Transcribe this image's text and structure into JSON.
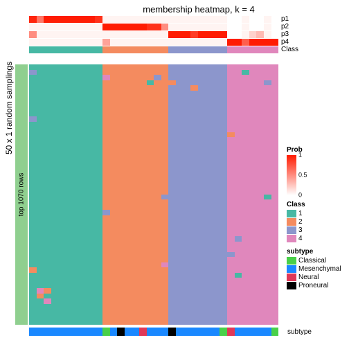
{
  "title": "membership heatmap, k = 4",
  "ylabel_outer": "50 x 1 random samplings",
  "ylabel_inner": "top 1070 rows",
  "ylabel_inner_bg": "#8fcf8f",
  "track_labels": [
    "p1",
    "p2",
    "p3",
    "p4",
    "Class"
  ],
  "bottom_label": "subtype",
  "prob_gradient": {
    "low": "#ffffff",
    "high": "#ff1a00"
  },
  "cluster_widths": [
    10,
    9,
    8,
    7
  ],
  "p_tracks": {
    "p1": [
      [
        0.95,
        0.6,
        0.99,
        0.99,
        0.99,
        0.99,
        0.99,
        0.99,
        0.99,
        0.9,
        0.05,
        0.05,
        0.05,
        0.05,
        0.05,
        0.05,
        0.05,
        0.05,
        0.05,
        0.05,
        0.05,
        0.05,
        0.05,
        0.05,
        0.05,
        0.05,
        0.05,
        0.0,
        0.0,
        0.05,
        0.0,
        0.0,
        0.05,
        0.0
      ],
      null,
      null,
      null,
      null
    ],
    "p2": [
      null,
      [
        0.05,
        0.05,
        0.05,
        0.05,
        0.05,
        0.05,
        0.05,
        0.05,
        0.05,
        0.05,
        0.99,
        0.99,
        0.99,
        0.99,
        0.99,
        0.99,
        0.9,
        0.9,
        0.5,
        0.05,
        0.05,
        0.05,
        0.05,
        0.05,
        0.05,
        0.05,
        0.05,
        0.0,
        0.0,
        0.05,
        0.0,
        0.0,
        0.05,
        0.0
      ],
      null,
      null,
      null
    ],
    "p3": [
      null,
      null,
      [
        0.5,
        0.05,
        0.05,
        0.05,
        0.05,
        0.05,
        0.05,
        0.05,
        0.05,
        0.05,
        0.05,
        0.05,
        0.05,
        0.05,
        0.05,
        0.05,
        0.05,
        0.05,
        0.05,
        0.99,
        0.99,
        0.99,
        0.85,
        0.99,
        0.99,
        0.99,
        0.99,
        0.0,
        0.0,
        0.05,
        0.2,
        0.3,
        0.05,
        0.0
      ],
      null,
      null
    ],
    "p4": [
      null,
      null,
      null,
      [
        0.05,
        0.05,
        0.05,
        0.05,
        0.05,
        0.05,
        0.05,
        0.05,
        0.05,
        0.05,
        0.4,
        0.05,
        0.05,
        0.05,
        0.05,
        0.05,
        0.05,
        0.05,
        0.05,
        0.05,
        0.05,
        0.05,
        0.05,
        0.05,
        0.05,
        0.05,
        0.05,
        0.99,
        0.99,
        0.7,
        0.99,
        0.99,
        0.99,
        0.99
      ],
      null
    ]
  },
  "class_track": [
    1,
    1,
    1,
    1,
    1,
    1,
    1,
    1,
    1,
    1,
    2,
    2,
    2,
    2,
    2,
    2,
    2,
    2,
    2,
    3,
    3,
    3,
    3,
    3,
    3,
    3,
    3,
    4,
    4,
    4,
    4,
    4,
    4,
    4
  ],
  "body_columns": [
    {
      "base": 1,
      "stripes": [
        [
          0.02,
          3
        ],
        [
          0.2,
          3
        ],
        [
          0.78,
          2
        ]
      ]
    },
    {
      "base": 1,
      "stripes": [
        [
          0.85,
          4
        ],
        [
          0.88,
          2
        ]
      ]
    },
    {
      "base": 1,
      "stripes": [
        [
          0.85,
          2
        ],
        [
          0.9,
          4
        ]
      ]
    },
    {
      "base": 1,
      "stripes": []
    },
    {
      "base": 1,
      "stripes": []
    },
    {
      "base": 1,
      "stripes": []
    },
    {
      "base": 1,
      "stripes": []
    },
    {
      "base": 1,
      "stripes": []
    },
    {
      "base": 1,
      "stripes": []
    },
    {
      "base": 1,
      "stripes": []
    },
    {
      "base": 2,
      "stripes": [
        [
          0.03,
          4
        ],
        [
          0.55,
          3
        ]
      ]
    },
    {
      "base": 2,
      "stripes": []
    },
    {
      "base": 2,
      "stripes": []
    },
    {
      "base": 2,
      "stripes": []
    },
    {
      "base": 2,
      "stripes": []
    },
    {
      "base": 2,
      "stripes": []
    },
    {
      "base": 2,
      "stripes": [
        [
          0.06,
          1
        ]
      ]
    },
    {
      "base": 2,
      "stripes": [
        [
          0.04,
          3
        ]
      ]
    },
    {
      "base": 2,
      "stripes": [
        [
          0.5,
          3
        ],
        [
          0.75,
          4
        ]
      ]
    },
    {
      "base": 3,
      "stripes": [
        [
          0.05,
          2
        ]
      ]
    },
    {
      "base": 3,
      "stripes": []
    },
    {
      "base": 3,
      "stripes": []
    },
    {
      "base": 3,
      "stripes": [
        [
          0.07,
          2
        ]
      ]
    },
    {
      "base": 3,
      "stripes": []
    },
    {
      "base": 3,
      "stripes": []
    },
    {
      "base": 3,
      "stripes": []
    },
    {
      "base": 3,
      "stripes": []
    },
    {
      "base": 4,
      "stripes": [
        [
          0.25,
          2
        ],
        [
          0.72,
          3
        ]
      ]
    },
    {
      "base": 4,
      "stripes": [
        [
          0.65,
          3
        ],
        [
          0.8,
          1
        ]
      ]
    },
    {
      "base": 4,
      "stripes": [
        [
          0.02,
          1
        ]
      ]
    },
    {
      "base": 4,
      "stripes": []
    },
    {
      "base": 4,
      "stripes": []
    },
    {
      "base": 4,
      "stripes": [
        [
          0.05,
          3
        ],
        [
          0.5,
          1
        ]
      ]
    },
    {
      "base": 4,
      "stripes": []
    }
  ],
  "subtype_track": [
    "Mesenchymal",
    "Mesenchymal",
    "Mesenchymal",
    "Mesenchymal",
    "Mesenchymal",
    "Mesenchymal",
    "Mesenchymal",
    "Mesenchymal",
    "Mesenchymal",
    "Mesenchymal",
    "Classical",
    "Mesenchymal",
    "Proneural",
    "Mesenchymal",
    "Mesenchymal",
    "Neural",
    "Mesenchymal",
    "Mesenchymal",
    "Mesenchymal",
    "Proneural",
    "Mesenchymal",
    "Mesenchymal",
    "Mesenchymal",
    "Mesenchymal",
    "Mesenchymal",
    "Mesenchymal",
    "Classical",
    "Neural",
    "Mesenchymal",
    "Mesenchymal",
    "Mesenchymal",
    "Mesenchymal",
    "Mesenchymal",
    "Classical"
  ],
  "legends": {
    "prob": {
      "title": "Prob",
      "ticks": [
        {
          "v": 1,
          "pos": 0
        },
        {
          "v": 0.5,
          "pos": 0.5
        },
        {
          "v": 0,
          "pos": 1
        }
      ]
    },
    "class": {
      "title": "Class",
      "colors": {
        "1": "#47b8a4",
        "2": "#f48b5f",
        "3": "#8c96cc",
        "4": "#e087bc"
      }
    },
    "subtype": {
      "title": "subtype",
      "colors": {
        "Classical": "#49d049",
        "Mesenchymal": "#1a88ff",
        "Neural": "#e03858",
        "Proneural": "#000000"
      }
    }
  },
  "background_color": "#ffffff",
  "fontsize_title": 13,
  "fontsize_label": 10
}
